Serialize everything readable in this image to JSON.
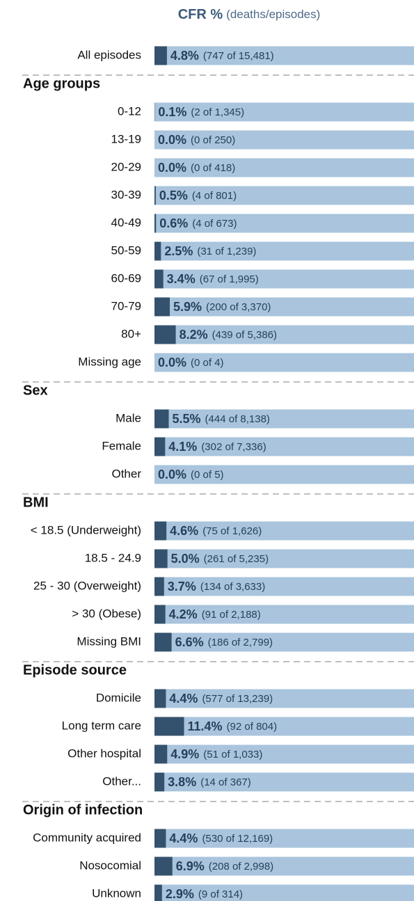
{
  "chart_data": {
    "type": "bar",
    "title": "CFR %",
    "subtitle": "(deaths/episodes)",
    "xlim": [
      0,
      100
    ],
    "bar_color": "#34526e",
    "background_color": "#a9c4dc",
    "groups": [
      {
        "name": null,
        "categories": [
          "All episodes"
        ],
        "values": [
          4.8
        ],
        "value_labels": [
          "4.8%"
        ],
        "details": [
          "(747 of 15,481)"
        ]
      },
      {
        "name": "Age groups",
        "categories": [
          "0-12",
          "13-19",
          "20-29",
          "30-39",
          "40-49",
          "50-59",
          "60-69",
          "70-79",
          "80+",
          "Missing age"
        ],
        "values": [
          0.1,
          0.0,
          0.0,
          0.5,
          0.6,
          2.5,
          3.4,
          5.9,
          8.2,
          0.0
        ],
        "value_labels": [
          "0.1%",
          "0.0%",
          "0.0%",
          "0.5%",
          "0.6%",
          "2.5%",
          "3.4%",
          "5.9%",
          "8.2%",
          "0.0%"
        ],
        "details": [
          "(2 of 1,345)",
          "(0 of 250)",
          "(0 of 418)",
          "(4 of 801)",
          "(4 of 673)",
          "(31 of 1,239)",
          "(67 of 1,995)",
          "(200 of 3,370)",
          "(439 of 5,386)",
          "(0 of 4)"
        ]
      },
      {
        "name": "Sex",
        "categories": [
          "Male",
          "Female",
          "Other"
        ],
        "values": [
          5.5,
          4.1,
          0.0
        ],
        "value_labels": [
          "5.5%",
          "4.1%",
          "0.0%"
        ],
        "details": [
          "(444 of 8,138)",
          "(302 of 7,336)",
          "(0 of 5)"
        ]
      },
      {
        "name": "BMI",
        "categories": [
          "< 18.5 (Underweight)",
          "18.5 - 24.9",
          "25 - 30 (Overweight)",
          "> 30 (Obese)",
          "Missing BMI"
        ],
        "values": [
          4.6,
          5.0,
          3.7,
          4.2,
          6.6
        ],
        "value_labels": [
          "4.6%",
          "5.0%",
          "3.7%",
          "4.2%",
          "6.6%"
        ],
        "details": [
          "(75 of 1,626)",
          "(261 of 5,235)",
          "(134 of 3,633)",
          "(91 of 2,188)",
          "(186 of 2,799)"
        ]
      },
      {
        "name": "Episode source",
        "categories": [
          "Domicile",
          "Long term care",
          "Other hospital",
          "Other..."
        ],
        "values": [
          4.4,
          11.4,
          4.9,
          3.8
        ],
        "value_labels": [
          "4.4%",
          "11.4%",
          "4.9%",
          "3.8%"
        ],
        "details": [
          "(577 of 13,239)",
          "(92 of 804)",
          "(51 of 1,033)",
          "(14 of 367)"
        ]
      },
      {
        "name": "Origin of infection",
        "categories": [
          "Community acquired",
          "Nosocomial",
          "Unknown"
        ],
        "values": [
          4.4,
          6.9,
          2.9
        ],
        "value_labels": [
          "4.4%",
          "6.9%",
          "2.9%"
        ],
        "details": [
          "(530 of 12,169)",
          "(208 of 2,998)",
          "(9 of 314)"
        ]
      }
    ]
  }
}
